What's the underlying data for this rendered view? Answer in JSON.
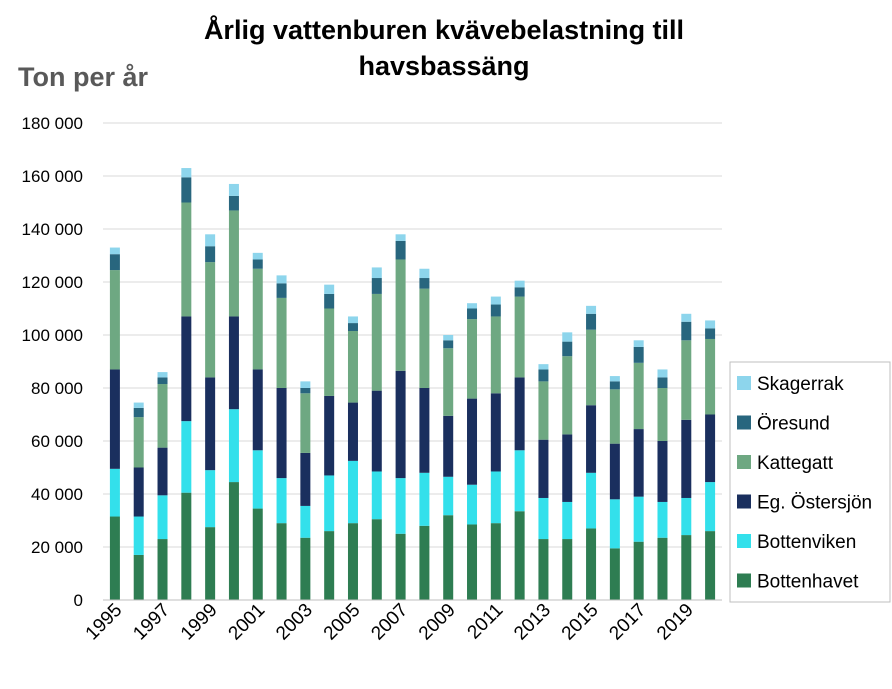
{
  "chart_data": {
    "type": "bar",
    "stacked": true,
    "title_line1": "Årlig vattenburen kvävebelastning till",
    "title_line2": "havsbassäng",
    "ylabel": "Ton per år",
    "ylim": [
      0,
      180000
    ],
    "yticks": [
      0,
      20000,
      40000,
      60000,
      80000,
      100000,
      120000,
      140000,
      160000,
      180000
    ],
    "ytick_labels": [
      "0",
      "20 000",
      "40 000",
      "60 000",
      "80 000",
      "100 000",
      "120 000",
      "140 000",
      "160 000",
      "180 000"
    ],
    "grid": true,
    "legend_position": "right",
    "categories": [
      "1995",
      "1996",
      "1997",
      "1998",
      "1999",
      "2000",
      "2001",
      "2002",
      "2003",
      "2004",
      "2005",
      "2006",
      "2007",
      "2008",
      "2009",
      "2010",
      "2011",
      "2012",
      "2013",
      "2014",
      "2015",
      "2016",
      "2017",
      "2018",
      "2019",
      "2020"
    ],
    "xtick_labels": [
      "1995",
      "",
      "1997",
      "",
      "1999",
      "",
      "2001",
      "",
      "2003",
      "",
      "2005",
      "",
      "2007",
      "",
      "2009",
      "",
      "2011",
      "",
      "2013",
      "",
      "2015",
      "",
      "2017",
      "",
      "2019",
      ""
    ],
    "series": [
      {
        "name": "Bottenhavet",
        "color": "#2e7d52",
        "values": [
          31500,
          17000,
          23000,
          40500,
          27500,
          44500,
          34500,
          29000,
          23500,
          26000,
          29000,
          30500,
          25000,
          28000,
          32000,
          28500,
          29000,
          33500,
          23000,
          23000,
          27000,
          19500,
          22000,
          23500,
          24500,
          26000
        ]
      },
      {
        "name": "Bottenviken",
        "color": "#33e0eb",
        "values": [
          18000,
          14500,
          16500,
          27000,
          21500,
          27500,
          22000,
          17000,
          12000,
          21000,
          23500,
          18000,
          21000,
          20000,
          14500,
          15000,
          19500,
          23000,
          15500,
          14000,
          21000,
          18500,
          17000,
          13500,
          14000,
          18500
        ]
      },
      {
        "name": "Eg. Östersjön",
        "color": "#1a2f5e",
        "values": [
          37500,
          18500,
          18000,
          39500,
          35000,
          35000,
          30500,
          34000,
          20000,
          30000,
          22000,
          30500,
          40500,
          32000,
          23000,
          32500,
          29500,
          27500,
          22000,
          25500,
          25500,
          21000,
          25500,
          23000,
          29500,
          25500
        ]
      },
      {
        "name": "Kattegatt",
        "color": "#6ea882",
        "values": [
          37500,
          19000,
          24000,
          43000,
          43500,
          40000,
          38000,
          34000,
          22500,
          33000,
          27000,
          36500,
          42000,
          37500,
          25500,
          30000,
          29000,
          30500,
          22000,
          29500,
          28500,
          20500,
          25000,
          20000,
          30000,
          28500
        ]
      },
      {
        "name": "Öresund",
        "color": "#28667e",
        "values": [
          6000,
          3500,
          2500,
          9500,
          6000,
          5500,
          3500,
          5500,
          2000,
          5500,
          3000,
          6000,
          7000,
          4000,
          3000,
          4000,
          4500,
          3500,
          4500,
          5500,
          6000,
          3000,
          6000,
          4000,
          7000,
          4000
        ]
      },
      {
        "name": "Skagerrak",
        "color": "#8dd5ec",
        "values": [
          2500,
          2000,
          2000,
          3500,
          4500,
          4500,
          2500,
          3000,
          2500,
          3500,
          2500,
          4000,
          2500,
          3500,
          2000,
          2000,
          3000,
          2500,
          2000,
          3500,
          3000,
          2000,
          2500,
          3000,
          3000,
          3000
        ]
      }
    ]
  }
}
